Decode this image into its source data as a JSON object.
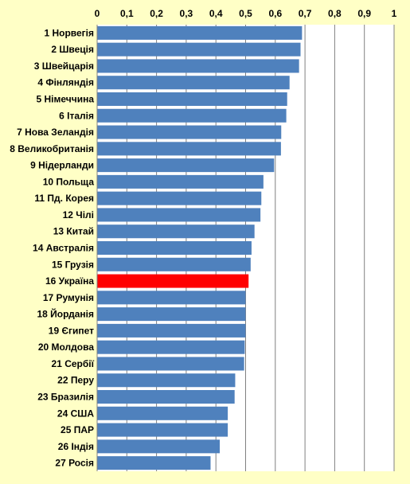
{
  "chart_data": {
    "type": "bar",
    "orientation": "horizontal",
    "title": "",
    "xlabel": "",
    "ylabel": "",
    "xlim": [
      0,
      1
    ],
    "x_ticks": [
      "0",
      "0,1",
      "0,2",
      "0,3",
      "0,4",
      "0,5",
      "0,6",
      "0,7",
      "0,8",
      "0,9",
      "1"
    ],
    "x_axis_position": "top",
    "grid": "vertical",
    "legend": "none",
    "categories": [
      "1 Норвегія",
      "2 Швеція",
      "3 Швейцарія",
      "4 Фінляндія",
      "5 Німеччина",
      "6 Італія",
      "7 Нова Зеландія",
      "8 Великобританія",
      "9 Нідерланди",
      "10 Польща",
      "11 Пд. Корея",
      "12 Чілі",
      "13 Китай",
      "14 Австралія",
      "15 Грузія",
      "16 Україна",
      "17 Румунія",
      "18 Йорданія",
      "19 Єгипет",
      "20 Молдова",
      "21 Сербії",
      "22 Перу",
      "23 Бразилія",
      "24 США",
      "25 ПАР",
      "26 Індія",
      "27 Росія"
    ],
    "values": [
      0.69,
      0.685,
      0.68,
      0.648,
      0.64,
      0.637,
      0.62,
      0.619,
      0.596,
      0.56,
      0.553,
      0.55,
      0.53,
      0.52,
      0.517,
      0.51,
      0.5,
      0.5,
      0.5,
      0.497,
      0.495,
      0.465,
      0.463,
      0.44,
      0.44,
      0.413,
      0.382
    ],
    "highlight_index": 15,
    "colors": {
      "bar": "#4f81bd",
      "highlight": "#ff0000",
      "background": "#ffffc6",
      "plot_background": "#ffffff",
      "grid": "#808080"
    }
  }
}
